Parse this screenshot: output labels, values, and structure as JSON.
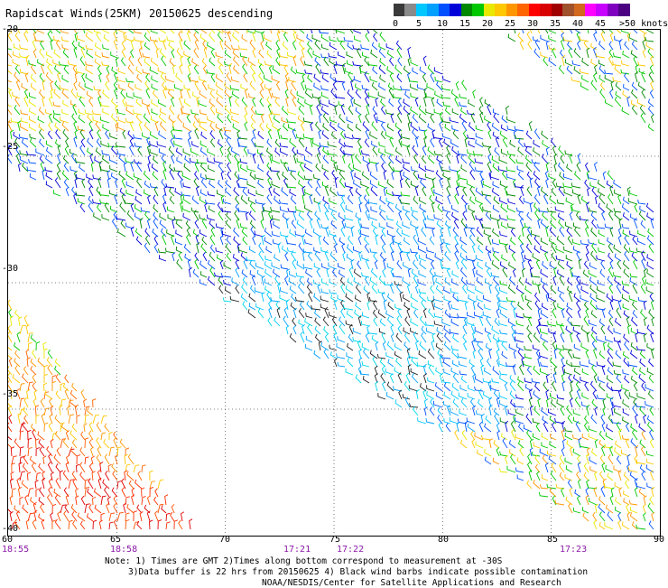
{
  "title": "Rapidscat Winds(25KM) 20150625 descending",
  "legend": {
    "labels": [
      "0",
      "5",
      "10",
      "15",
      "20",
      "25",
      "30",
      "35",
      "40",
      "45",
      ">50 knots"
    ],
    "colors": [
      "#3a3a3a",
      "#8a8a8a",
      "#00c8ff",
      "#00a0ff",
      "#0050ff",
      "#0000d8",
      "#008800",
      "#00c800",
      "#e8e800",
      "#ffc800",
      "#ff9600",
      "#ff6400",
      "#ff0000",
      "#d80000",
      "#a00000",
      "#a0522d",
      "#d2691e",
      "#ff00ff",
      "#c800ff",
      "#8000c0",
      "#4b0082"
    ]
  },
  "axes": {
    "lat_labels": [
      "-20",
      "-25",
      "-30",
      "-35",
      "-40"
    ],
    "lon_labels": [
      "60",
      "65",
      "70",
      "75",
      "80",
      "85",
      "90"
    ]
  },
  "times": [
    "18:55",
    "18:58",
    "17:21",
    "17:22",
    "17:23"
  ],
  "notes": [
    "Note: 1) Times are GMT 2)Times along bottom correspond to measurement at -30S",
    "3)Data buffer is 22 hrs from 20150625 4) Black wind barbs indicate possible contamination",
    "NOAA/NESDIS/Center for Satellite Applications and Research"
  ]
}
